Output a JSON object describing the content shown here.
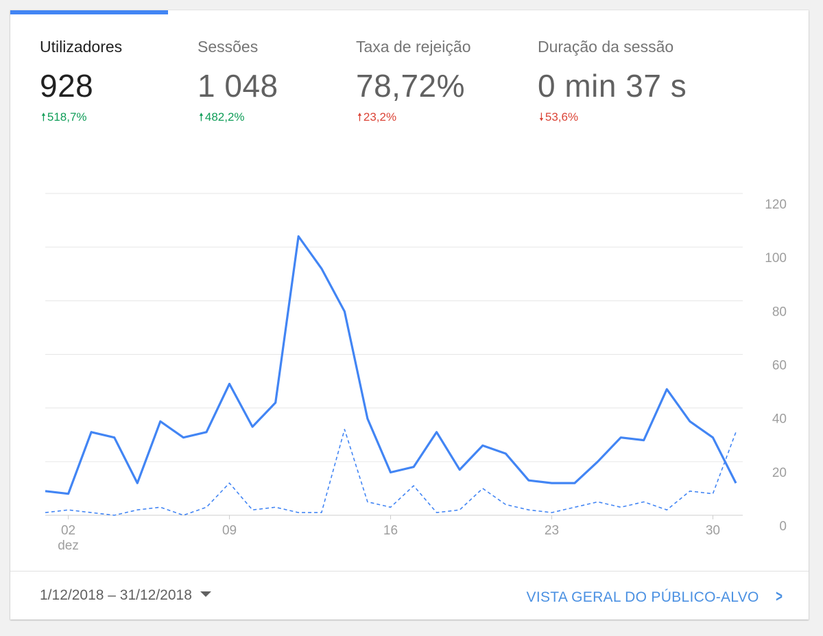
{
  "metrics": [
    {
      "label": "Utilizadores",
      "value": "928",
      "delta": "518,7%",
      "direction": "up",
      "color": "#0f9d58"
    },
    {
      "label": "Sessões",
      "value": "1 048",
      "delta": "482,2%",
      "direction": "up",
      "color": "#0f9d58"
    },
    {
      "label": "Taxa de rejeição",
      "value": "78,72%",
      "delta": "23,2%",
      "direction": "up",
      "color": "#db4437"
    },
    {
      "label": "Duração da sessão",
      "value": "0 min 37 s",
      "delta": "53,6%",
      "direction": "down",
      "color": "#db4437"
    }
  ],
  "arrows": {
    "up": "🠕",
    "down": "🠗"
  },
  "footer": {
    "date_range": "1/12/2018 – 31/12/2018",
    "audience_link": "VISTA GERAL DO PÚBLICO-ALVO"
  },
  "colors": {
    "accent": "#4285f4",
    "positive": "#0f9d58",
    "negative": "#db4437",
    "link": "#4a90e2"
  },
  "chart_data": {
    "type": "line",
    "x": [
      "2018-12-01",
      "2018-12-02",
      "2018-12-03",
      "2018-12-04",
      "2018-12-05",
      "2018-12-06",
      "2018-12-07",
      "2018-12-08",
      "2018-12-09",
      "2018-12-10",
      "2018-12-11",
      "2018-12-12",
      "2018-12-13",
      "2018-12-14",
      "2018-12-15",
      "2018-12-16",
      "2018-12-17",
      "2018-12-18",
      "2018-12-19",
      "2018-12-20",
      "2018-12-21",
      "2018-12-22",
      "2018-12-23",
      "2018-12-24",
      "2018-12-25",
      "2018-12-26",
      "2018-12-27",
      "2018-12-28",
      "2018-12-29",
      "2018-12-30",
      "2018-12-31"
    ],
    "series": [
      {
        "values": [
          9,
          8,
          31,
          29,
          12,
          35,
          29,
          31,
          49,
          33,
          42,
          104,
          92,
          76,
          36,
          16,
          18,
          31,
          17,
          26,
          23,
          13,
          12,
          12,
          20,
          29,
          28,
          47,
          35,
          29,
          12
        ],
        "style": "solid"
      },
      {
        "values": [
          1,
          2,
          1,
          0,
          2,
          3,
          0,
          3,
          12,
          2,
          3,
          1,
          1,
          32,
          5,
          3,
          11,
          1,
          2,
          10,
          4,
          2,
          1,
          3,
          5,
          3,
          5,
          2,
          9,
          8,
          31
        ],
        "style": "dashed"
      }
    ],
    "x_ticks": [
      "02",
      "09",
      "16",
      "23",
      "30"
    ],
    "x_tick_sub": "dez",
    "y_ticks": [
      "0",
      "20",
      "40",
      "60",
      "80",
      "100",
      "120"
    ],
    "ylim": [
      0,
      120
    ],
    "grid": true,
    "y_axis_side": "right",
    "line_color": "#4285f4"
  }
}
